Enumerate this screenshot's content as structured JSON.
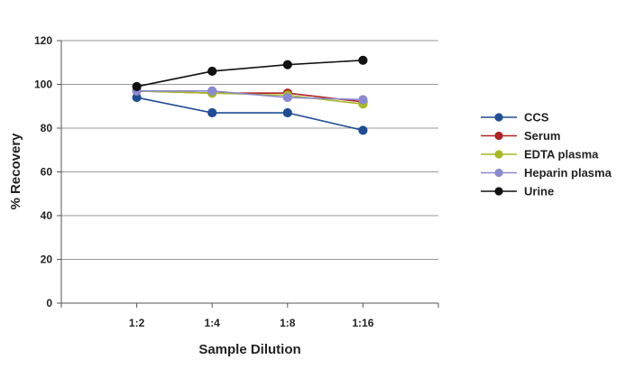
{
  "chart_data": {
    "type": "line",
    "title": "",
    "xlabel": "Sample Dilution",
    "ylabel": "% Recovery",
    "categories": [
      "1:2",
      "1:4",
      "1:8",
      "1:16"
    ],
    "ylim": [
      0,
      120
    ],
    "yticks": [
      0,
      20,
      40,
      60,
      80,
      100,
      120
    ],
    "grid": true,
    "legend_position": "right",
    "series": [
      {
        "name": "CCS",
        "color": "#1f4e96",
        "values": [
          94,
          87,
          87,
          79
        ]
      },
      {
        "name": "Serum",
        "color": "#b22222",
        "values": [
          97,
          96,
          96,
          92
        ]
      },
      {
        "name": "EDTA plasma",
        "color": "#a8b820",
        "values": [
          97,
          96,
          95,
          91
        ]
      },
      {
        "name": "Heparin plasma",
        "color": "#8a8ad0",
        "values": [
          97,
          97,
          94,
          93
        ]
      },
      {
        "name": "Urine",
        "color": "#111111",
        "values": [
          99,
          106,
          109,
          111
        ]
      }
    ]
  }
}
